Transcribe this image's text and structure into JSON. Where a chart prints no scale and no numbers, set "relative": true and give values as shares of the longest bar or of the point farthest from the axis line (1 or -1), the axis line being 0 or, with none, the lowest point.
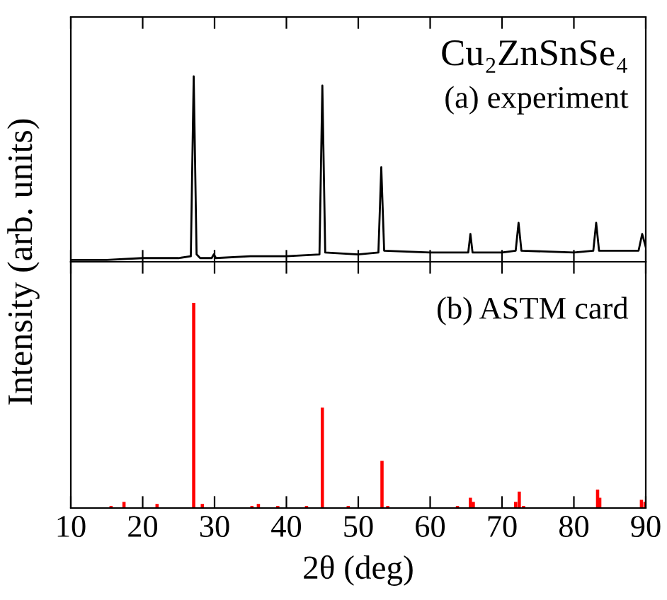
{
  "chart_data": [
    {
      "type": "line",
      "relative": true,
      "ylabel": "Intensity (arb. units)",
      "xlim": [
        10,
        90
      ],
      "xticks": [
        10,
        20,
        30,
        40,
        50,
        60,
        70,
        80,
        90
      ],
      "tick_labels": false,
      "grid": false,
      "legend": false,
      "annotations": [
        "Cu₂ZnSnSe₄",
        "(a) experiment"
      ],
      "series": [
        {
          "color": "#000000",
          "x": [
            10,
            15,
            20,
            25,
            26.7,
            27.1,
            27.5,
            28,
            29.6,
            29.9,
            30.2,
            35,
            40,
            44.6,
            45.0,
            45.4,
            50,
            52.8,
            53.2,
            53.6,
            60,
            65.3,
            65.6,
            65.9,
            70,
            71.9,
            72.3,
            72.7,
            80,
            82.7,
            83.1,
            83.5,
            89.0,
            89.5,
            90
          ],
          "values": [
            0.01,
            0.01,
            0.02,
            0.02,
            0.03,
            1,
            0.04,
            0.02,
            0.02,
            0.04,
            0.02,
            0.03,
            0.03,
            0.04,
            0.95,
            0.05,
            0.04,
            0.05,
            0.51,
            0.06,
            0.05,
            0.05,
            0.15,
            0.05,
            0.05,
            0.06,
            0.21,
            0.06,
            0.05,
            0.06,
            0.21,
            0.06,
            0.06,
            0.15,
            0.08
          ]
        }
      ]
    },
    {
      "type": "bar",
      "relative": true,
      "xlabel": "2θ (deg)",
      "xlim": [
        10,
        90
      ],
      "xticks": [
        10,
        20,
        30,
        40,
        50,
        60,
        70,
        80,
        90
      ],
      "tick_labels": "x",
      "grid": false,
      "legend": false,
      "annotations": [
        "(b) ASTM card"
      ],
      "series": [
        {
          "color": "#ff0000",
          "x": [
            15.6,
            17.4,
            22.0,
            27.1,
            28.3,
            35.2,
            36.1,
            38.8,
            42.8,
            45.0,
            48.6,
            53.3,
            54.1,
            63.8,
            65.6,
            66.0,
            71.9,
            72.4,
            73.0,
            83.3,
            83.6,
            89.4,
            89.9
          ],
          "values": [
            0.01,
            0.03,
            0.02,
            1,
            0.02,
            0.01,
            0.02,
            0.01,
            0.01,
            0.49,
            0.01,
            0.23,
            0.01,
            0.01,
            0.05,
            0.03,
            0.03,
            0.08,
            0.01,
            0.09,
            0.05,
            0.04,
            0.03
          ]
        }
      ]
    }
  ]
}
